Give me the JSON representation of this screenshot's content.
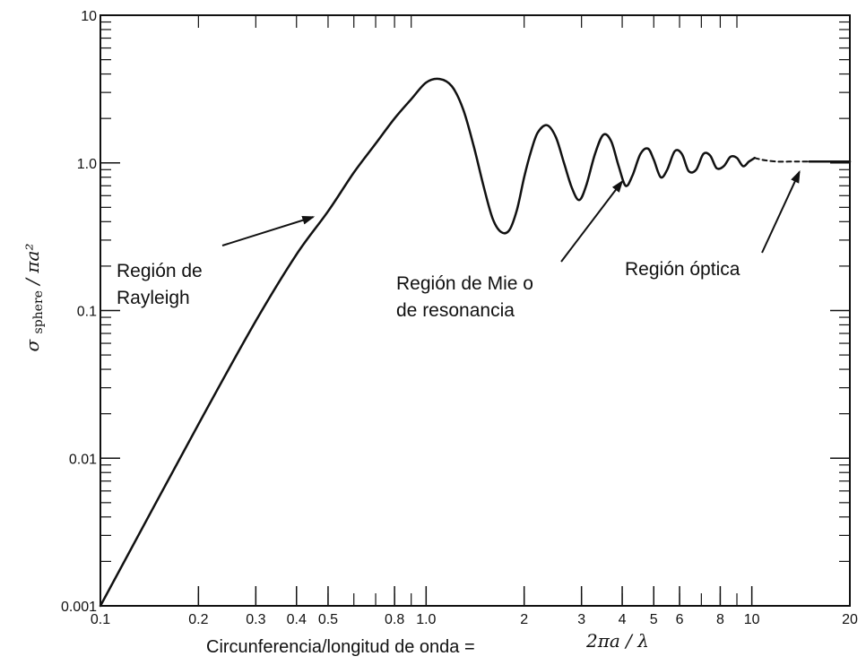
{
  "chart_data": {
    "type": "line",
    "x_scale": "log",
    "y_scale": "log",
    "xlim": [
      0.1,
      20
    ],
    "ylim": [
      0.001,
      10
    ],
    "grid": false,
    "xlabel": "Circunferencia/longitud de onda =",
    "xlabel_math": "2πa / λ",
    "ylabel": "σsphere / πa²",
    "ylabel_parts": {
      "sigma": "σ",
      "sub": "sphere",
      "rest": " / πa²"
    },
    "x_ticks": [
      {
        "value": 0.1,
        "label": "0.1"
      },
      {
        "value": 0.2,
        "label": "0.2"
      },
      {
        "value": 0.3,
        "label": "0.3"
      },
      {
        "value": 0.4,
        "label": "0.4"
      },
      {
        "value": 0.5,
        "label": "0.5"
      },
      {
        "value": 0.8,
        "label": "0.8"
      },
      {
        "value": 1.0,
        "label": "1.0"
      },
      {
        "value": 2,
        "label": "2"
      },
      {
        "value": 3,
        "label": "3"
      },
      {
        "value": 4,
        "label": "4"
      },
      {
        "value": 5,
        "label": "5"
      },
      {
        "value": 6,
        "label": "6"
      },
      {
        "value": 8,
        "label": "8"
      },
      {
        "value": 10,
        "label": "10"
      },
      {
        "value": 20,
        "label": "20"
      }
    ],
    "y_ticks": [
      {
        "value": 0.001,
        "label": "0.001"
      },
      {
        "value": 0.01,
        "label": "0.01"
      },
      {
        "value": 0.1,
        "label": "0.1"
      },
      {
        "value": 1.0,
        "label": "1.0"
      },
      {
        "value": 10,
        "label": "10"
      }
    ],
    "series": [
      {
        "style": "solid",
        "x": [
          0.1,
          0.2,
          0.3,
          0.4,
          0.5,
          0.6,
          0.7,
          0.8,
          0.9,
          1.0,
          1.1,
          1.2,
          1.3,
          1.4,
          1.5,
          1.6,
          1.7,
          1.8,
          1.9,
          2.0,
          2.1,
          2.2,
          2.35,
          2.5,
          2.65,
          2.8,
          2.95,
          3.1,
          3.3,
          3.5,
          3.7,
          3.9,
          4.1,
          4.3,
          4.55,
          4.8,
          5.0,
          5.25,
          5.5,
          5.8,
          6.1,
          6.4,
          6.75,
          7.1,
          7.45,
          7.8,
          8.2,
          8.6,
          9.0,
          9.4,
          9.8,
          10.2
        ],
        "y": [
          0.001,
          0.017,
          0.085,
          0.24,
          0.47,
          0.86,
          1.35,
          2.0,
          2.7,
          3.5,
          3.7,
          3.3,
          2.3,
          1.3,
          0.7,
          0.42,
          0.34,
          0.35,
          0.48,
          0.8,
          1.2,
          1.6,
          1.8,
          1.5,
          1.0,
          0.68,
          0.56,
          0.7,
          1.15,
          1.55,
          1.4,
          0.95,
          0.7,
          0.82,
          1.15,
          1.25,
          1.05,
          0.8,
          0.9,
          1.2,
          1.15,
          0.88,
          0.9,
          1.15,
          1.12,
          0.92,
          0.95,
          1.1,
          1.08,
          0.95,
          1.02,
          1.08
        ]
      },
      {
        "style": "dashed",
        "x": [
          10.2,
          11,
          12,
          13,
          14,
          15
        ],
        "y": [
          1.08,
          1.04,
          1.02,
          1.02,
          1.02,
          1.02
        ]
      },
      {
        "style": "solid",
        "x": [
          15,
          20
        ],
        "y": [
          1.02,
          1.02
        ]
      }
    ],
    "annotations": [
      {
        "id": "rayleigh",
        "lines": [
          "Región de",
          "Rayleigh"
        ],
        "arrow_target": {
          "x": 0.45,
          "y": 0.43
        }
      },
      {
        "id": "mie",
        "lines": [
          "Región de Mie o",
          "de resonancia"
        ],
        "arrow_target": {
          "x": 4.0,
          "y": 0.75
        }
      },
      {
        "id": "optica",
        "lines": [
          "Región óptica"
        ],
        "arrow_target": {
          "x": 14,
          "y": 0.87
        }
      }
    ]
  }
}
